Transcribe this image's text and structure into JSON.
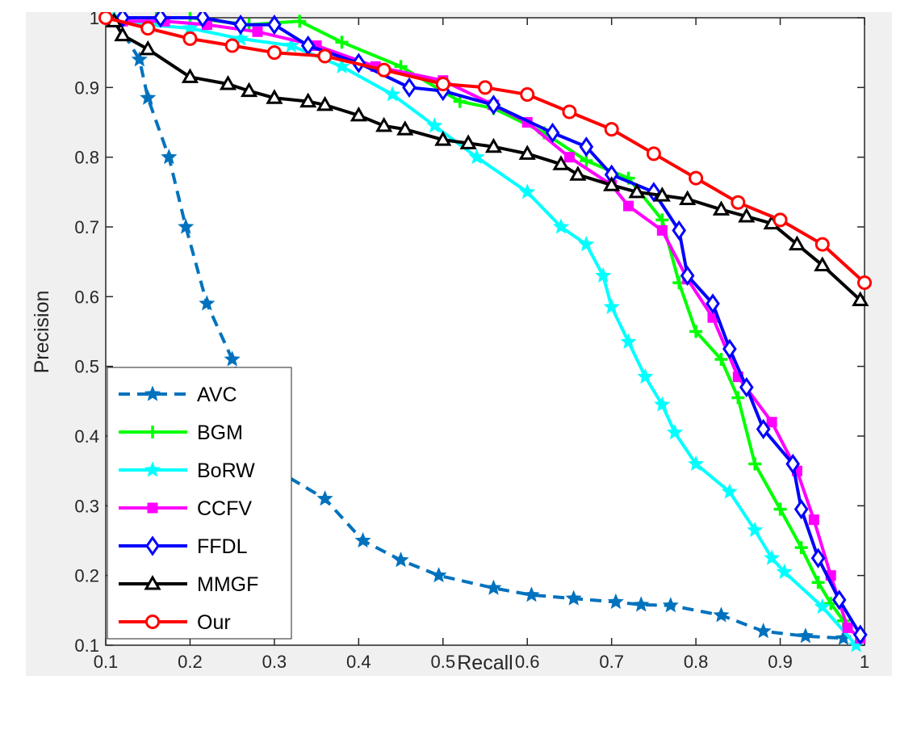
{
  "chart_data": {
    "type": "line",
    "title": "",
    "xlabel": "Recall",
    "ylabel": "Precision",
    "xlim": [
      0.1,
      1
    ],
    "ylim": [
      0.1,
      1
    ],
    "xticks": [
      "0.1",
      "0.2",
      "0.3",
      "0.4",
      "0.5",
      "0.6",
      "0.7",
      "0.8",
      "0.9",
      "1"
    ],
    "yticks": [
      "0.1",
      "0.2",
      "0.3",
      "0.4",
      "0.5",
      "0.6",
      "0.7",
      "0.8",
      "0.9",
      "1"
    ],
    "grid": false,
    "legend_position": "bottom-left",
    "series": [
      {
        "name": "AVC",
        "color": "#0072bd",
        "marker": "star",
        "dashed": true,
        "x": [
          0.11,
          0.14,
          0.15,
          0.175,
          0.195,
          0.22,
          0.25,
          0.29,
          0.36,
          0.405,
          0.45,
          0.495,
          0.56,
          0.605,
          0.655,
          0.705,
          0.735,
          0.77,
          0.83,
          0.88,
          0.93,
          0.975
        ],
        "y": [
          1.0,
          0.94,
          0.885,
          0.8,
          0.7,
          0.59,
          0.51,
          0.36,
          0.31,
          0.25,
          0.222,
          0.2,
          0.182,
          0.172,
          0.167,
          0.162,
          0.158,
          0.157,
          0.143,
          0.12,
          0.113,
          0.11
        ]
      },
      {
        "name": "BGM",
        "color": "#00ff00",
        "marker": "plus",
        "dashed": false,
        "x": [
          0.11,
          0.16,
          0.2,
          0.27,
          0.33,
          0.38,
          0.45,
          0.52,
          0.56,
          0.62,
          0.67,
          0.72,
          0.76,
          0.78,
          0.8,
          0.83,
          0.85,
          0.87,
          0.9,
          0.925,
          0.945,
          0.96,
          0.975
        ],
        "y": [
          1.0,
          1.0,
          1.0,
          0.99,
          0.995,
          0.965,
          0.93,
          0.88,
          0.87,
          0.835,
          0.795,
          0.77,
          0.71,
          0.62,
          0.55,
          0.51,
          0.455,
          0.36,
          0.295,
          0.24,
          0.19,
          0.16,
          0.135
        ]
      },
      {
        "name": "BoRW",
        "color": "#00ffff",
        "marker": "star",
        "dashed": false,
        "x": [
          0.11,
          0.15,
          0.2,
          0.26,
          0.32,
          0.38,
          0.44,
          0.49,
          0.54,
          0.6,
          0.64,
          0.67,
          0.69,
          0.7,
          0.72,
          0.74,
          0.76,
          0.775,
          0.8,
          0.84,
          0.87,
          0.89,
          0.905,
          0.95,
          0.99
        ],
        "y": [
          1.0,
          0.99,
          0.985,
          0.97,
          0.96,
          0.93,
          0.89,
          0.845,
          0.8,
          0.75,
          0.7,
          0.675,
          0.63,
          0.585,
          0.535,
          0.485,
          0.445,
          0.405,
          0.36,
          0.32,
          0.265,
          0.225,
          0.205,
          0.155,
          0.1
        ]
      },
      {
        "name": "CCFV",
        "color": "#ff00ff",
        "marker": "square",
        "dashed": false,
        "x": [
          0.12,
          0.17,
          0.22,
          0.28,
          0.35,
          0.42,
          0.5,
          0.56,
          0.6,
          0.65,
          0.7,
          0.72,
          0.76,
          0.79,
          0.82,
          0.85,
          0.89,
          0.92,
          0.94,
          0.96,
          0.98,
          0.995
        ],
        "y": [
          0.995,
          0.995,
          0.99,
          0.98,
          0.96,
          0.93,
          0.91,
          0.875,
          0.85,
          0.8,
          0.76,
          0.73,
          0.695,
          0.625,
          0.57,
          0.485,
          0.42,
          0.35,
          0.28,
          0.2,
          0.125,
          0.11
        ]
      },
      {
        "name": "FFDL",
        "color": "#0000ff",
        "marker": "diamond",
        "dashed": false,
        "x": [
          0.12,
          0.165,
          0.215,
          0.26,
          0.3,
          0.34,
          0.4,
          0.46,
          0.5,
          0.56,
          0.63,
          0.67,
          0.7,
          0.75,
          0.78,
          0.79,
          0.82,
          0.84,
          0.86,
          0.88,
          0.915,
          0.925,
          0.945,
          0.97,
          0.995
        ],
        "y": [
          1.0,
          1.0,
          1.0,
          0.99,
          0.99,
          0.96,
          0.935,
          0.9,
          0.895,
          0.875,
          0.835,
          0.815,
          0.775,
          0.75,
          0.695,
          0.63,
          0.59,
          0.525,
          0.47,
          0.41,
          0.36,
          0.295,
          0.225,
          0.165,
          0.115
        ]
      },
      {
        "name": "MMGF",
        "color": "#000000",
        "marker": "triangle",
        "dashed": false,
        "x": [
          0.11,
          0.12,
          0.15,
          0.2,
          0.245,
          0.27,
          0.3,
          0.34,
          0.36,
          0.4,
          0.43,
          0.455,
          0.5,
          0.53,
          0.56,
          0.6,
          0.64,
          0.66,
          0.7,
          0.73,
          0.76,
          0.79,
          0.83,
          0.86,
          0.89,
          0.92,
          0.95,
          0.995
        ],
        "y": [
          0.995,
          0.975,
          0.955,
          0.915,
          0.905,
          0.895,
          0.885,
          0.88,
          0.875,
          0.86,
          0.845,
          0.84,
          0.825,
          0.82,
          0.815,
          0.805,
          0.79,
          0.775,
          0.76,
          0.75,
          0.745,
          0.74,
          0.725,
          0.715,
          0.705,
          0.675,
          0.645,
          0.595
        ]
      },
      {
        "name": "Our",
        "color": "#ff0000",
        "marker": "circle",
        "dashed": false,
        "x": [
          0.1,
          0.15,
          0.2,
          0.25,
          0.3,
          0.36,
          0.43,
          0.5,
          0.55,
          0.6,
          0.65,
          0.7,
          0.75,
          0.8,
          0.85,
          0.9,
          0.95,
          1.0
        ],
        "y": [
          1.0,
          0.985,
          0.97,
          0.96,
          0.95,
          0.945,
          0.925,
          0.905,
          0.9,
          0.89,
          0.865,
          0.84,
          0.805,
          0.77,
          0.735,
          0.71,
          0.675,
          0.62
        ]
      }
    ]
  }
}
